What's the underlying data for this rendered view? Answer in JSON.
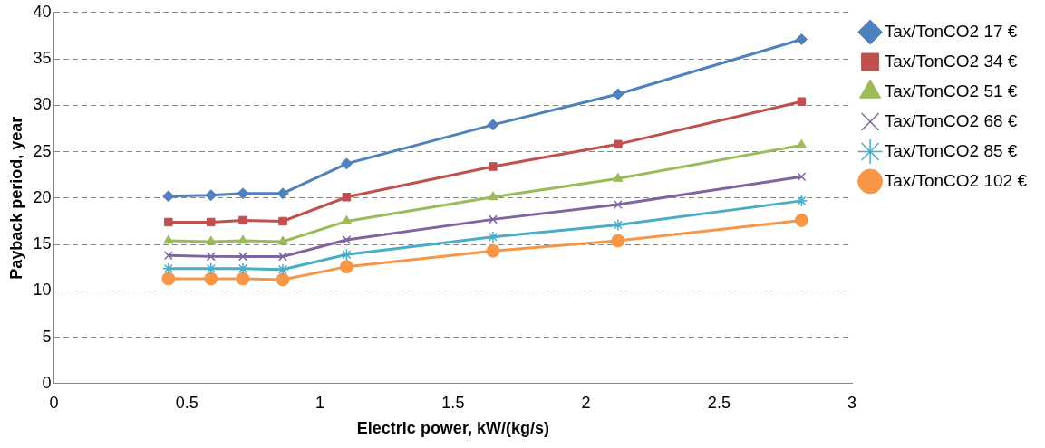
{
  "chart_data": {
    "type": "line",
    "x_label": "Electric power, kW/(kg/s)",
    "y_label": "Payback period, year",
    "x": [
      0.43,
      0.59,
      0.71,
      0.86,
      1.1,
      1.65,
      2.12,
      2.81
    ],
    "series": [
      {
        "name": "Tax/TonCO2 17 €",
        "color": "#4F81BD",
        "marker": "diamond",
        "values": [
          20.2,
          20.3,
          20.5,
          20.5,
          23.7,
          27.9,
          31.2,
          37.1
        ]
      },
      {
        "name": "Tax/TonCO2 34 €",
        "color": "#C0504D",
        "marker": "square",
        "values": [
          17.4,
          17.4,
          17.6,
          17.5,
          20.1,
          23.4,
          25.8,
          30.4
        ]
      },
      {
        "name": "Tax/TonCO2 51 €",
        "color": "#9BBB59",
        "marker": "triangle",
        "values": [
          15.4,
          15.3,
          15.4,
          15.3,
          17.5,
          20.1,
          22.1,
          25.7
        ]
      },
      {
        "name": "Tax/TonCO2 68 €",
        "color": "#8064A2",
        "marker": "x",
        "values": [
          13.8,
          13.7,
          13.7,
          13.7,
          15.5,
          17.7,
          19.3,
          22.3
        ]
      },
      {
        "name": "Tax/TonCO2 85 €",
        "color": "#4BACC6",
        "marker": "star",
        "values": [
          12.4,
          12.4,
          12.4,
          12.3,
          13.9,
          15.8,
          17.1,
          19.7
        ]
      },
      {
        "name": "Tax/TonCO2 102 €",
        "color": "#F79646",
        "marker": "circle",
        "values": [
          11.3,
          11.3,
          11.3,
          11.2,
          12.6,
          14.3,
          15.4,
          17.6
        ]
      }
    ],
    "xlim": [
      0,
      3
    ],
    "xticks": [
      0,
      0.5,
      1,
      1.5,
      2,
      2.5,
      3
    ],
    "ylim": [
      0,
      40
    ],
    "yticks": [
      0,
      5,
      10,
      15,
      20,
      25,
      30,
      35,
      40
    ],
    "grid": true,
    "legend": "right"
  }
}
